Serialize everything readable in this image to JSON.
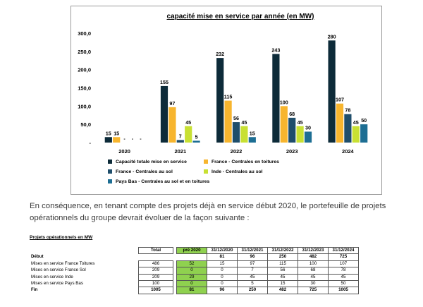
{
  "chart_data": {
    "type": "bar",
    "title": "capacité mise en service par année (en MW)",
    "categories": [
      "2020",
      "2021",
      "2022",
      "2023",
      "2024"
    ],
    "ylim": [
      0,
      300
    ],
    "yticks": [
      "-",
      "50,0",
      "100,0",
      "150,0",
      "200,0",
      "250,0",
      "300,0"
    ],
    "legend_position": "bottom",
    "series": [
      {
        "name": "Capacité totale mise en service",
        "color": "#0d2b39",
        "values": [
          15,
          155,
          232,
          243,
          280
        ],
        "labels": [
          "15",
          "155",
          "232",
          "243",
          "280"
        ]
      },
      {
        "name": "France - Centrales en toitures",
        "color": "#f7b52e",
        "values": [
          15,
          97,
          115,
          100,
          107
        ],
        "labels": [
          "15",
          "97",
          "115",
          "100",
          "107"
        ]
      },
      {
        "name": "France - Centrales au sol",
        "color": "#1f4e6b",
        "values": [
          0,
          7,
          56,
          68,
          78
        ],
        "labels": [
          "-",
          "7",
          "56",
          "68",
          "78"
        ]
      },
      {
        "name": "Inde - Centrales au sol",
        "color": "#c8e033",
        "values": [
          0,
          45,
          45,
          45,
          45
        ],
        "labels": [
          "-",
          "45",
          "45",
          "45",
          "45"
        ]
      },
      {
        "name": "Pays Bas - Centrales au sol et en toitures",
        "color": "#1d6e93",
        "values": [
          0,
          5,
          15,
          30,
          50
        ],
        "labels": [
          "-",
          "5",
          "15",
          "30",
          "50"
        ]
      }
    ]
  },
  "paragraph": "En conséquence, en tenant compte des projets déjà en service début 2020, le portefeuille de projets opérationnels du groupe devrait évoluer de la façon suivante :",
  "table": {
    "title": "Projets opérationnels en MW",
    "headers": [
      "Total",
      "pré 2020",
      "31/12/2020",
      "31/12/2021",
      "31/12/2022",
      "31/12/2023",
      "31/12/2024"
    ],
    "debut": {
      "label": "Début",
      "values": [
        "81",
        "96",
        "250",
        "482",
        "725"
      ]
    },
    "rows": [
      {
        "label": "Mises en service France Toitures",
        "total": "486",
        "pre": "52",
        "values": [
          "15",
          "97",
          "115",
          "100",
          "107"
        ]
      },
      {
        "label": "Mises en service France Sol",
        "total": "209",
        "pre": "0",
        "values": [
          "0",
          "7",
          "56",
          "68",
          "78"
        ]
      },
      {
        "label": "Mises en service Inde",
        "total": "209",
        "pre": "29",
        "values": [
          "0",
          "45",
          "45",
          "45",
          "45"
        ]
      },
      {
        "label": "Mises en service Pays Bas",
        "total": "100",
        "pre": "0",
        "values": [
          "0",
          "5",
          "15",
          "30",
          "50"
        ]
      }
    ],
    "fin": {
      "label": "Fin",
      "total": "1005",
      "pre": "81",
      "values": [
        "96",
        "250",
        "482",
        "725",
        "1005"
      ]
    }
  }
}
